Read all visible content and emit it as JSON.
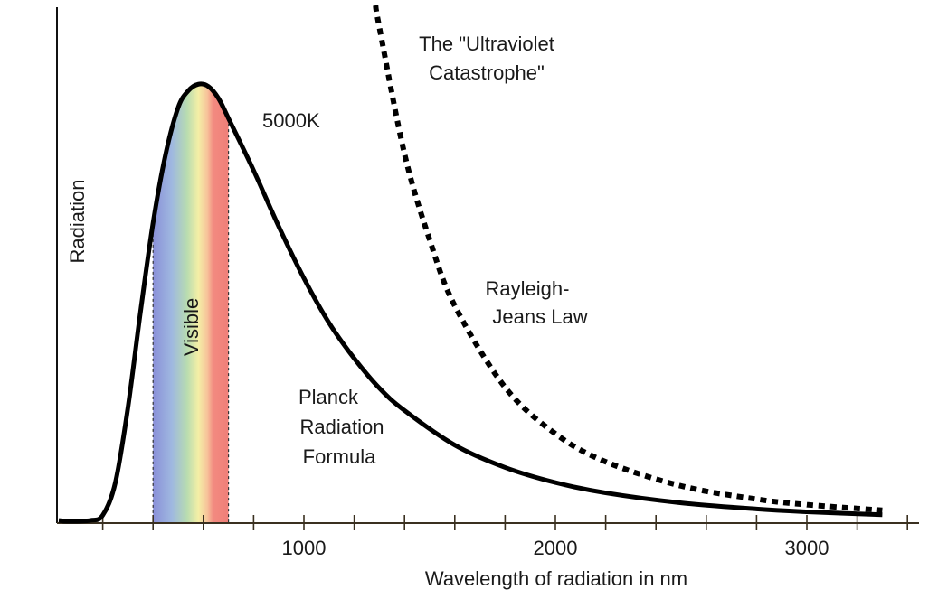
{
  "chart_data": {
    "type": "line",
    "title": "",
    "xlabel": "Wavelength of radiation in nm",
    "ylabel": "Radiation",
    "xlim": [
      0,
      3400
    ],
    "ylim": [
      0,
      1.18
    ],
    "x_tick_labels": [
      {
        "value": 1000,
        "label": "1000"
      },
      {
        "value": 2000,
        "label": "2000"
      },
      {
        "value": 3000,
        "label": "3000"
      }
    ],
    "minor_tick_step": 200,
    "grid": false,
    "visible_band": {
      "label": "Visible",
      "from": 400,
      "to": 700
    },
    "series": [
      {
        "name": "Planck Radiation Formula",
        "style": "solid",
        "x": [
          60,
          150,
          200,
          250,
          300,
          350,
          400,
          450,
          500,
          540,
          580,
          620,
          660,
          700,
          800,
          900,
          1000,
          1100,
          1200,
          1300,
          1400,
          1600,
          1800,
          2000,
          2200,
          2500,
          2800,
          3000,
          3300
        ],
        "y": [
          0.002,
          0.004,
          0.016,
          0.09,
          0.261,
          0.48,
          0.683,
          0.84,
          0.947,
          0.985,
          1.0,
          0.995,
          0.968,
          0.922,
          0.803,
          0.675,
          0.557,
          0.455,
          0.374,
          0.306,
          0.255,
          0.176,
          0.125,
          0.0905,
          0.0669,
          0.0441,
          0.0301,
          0.0238,
          0.0171
        ]
      },
      {
        "name": "Rayleigh-Jeans Law",
        "style": "dotted",
        "x": [
          1285,
          1300,
          1400,
          1500,
          1600,
          1800,
          2000,
          2200,
          2500,
          2800,
          3000,
          3300
        ],
        "y": [
          1.18,
          1.13,
          0.841,
          0.645,
          0.494,
          0.308,
          0.202,
          0.138,
          0.0828,
          0.0526,
          0.04,
          0.0273
        ]
      }
    ],
    "annotations": [
      {
        "id": "uv",
        "lines": [
          "The \"Ultraviolet",
          "Catastrophe\""
        ]
      },
      {
        "id": "temp",
        "lines": [
          "5000K"
        ]
      },
      {
        "id": "rj",
        "lines": [
          "Rayleigh-",
          "Jeans Law"
        ]
      },
      {
        "id": "planck",
        "lines": [
          "Planck",
          "Radiation",
          "Formula"
        ]
      }
    ]
  }
}
